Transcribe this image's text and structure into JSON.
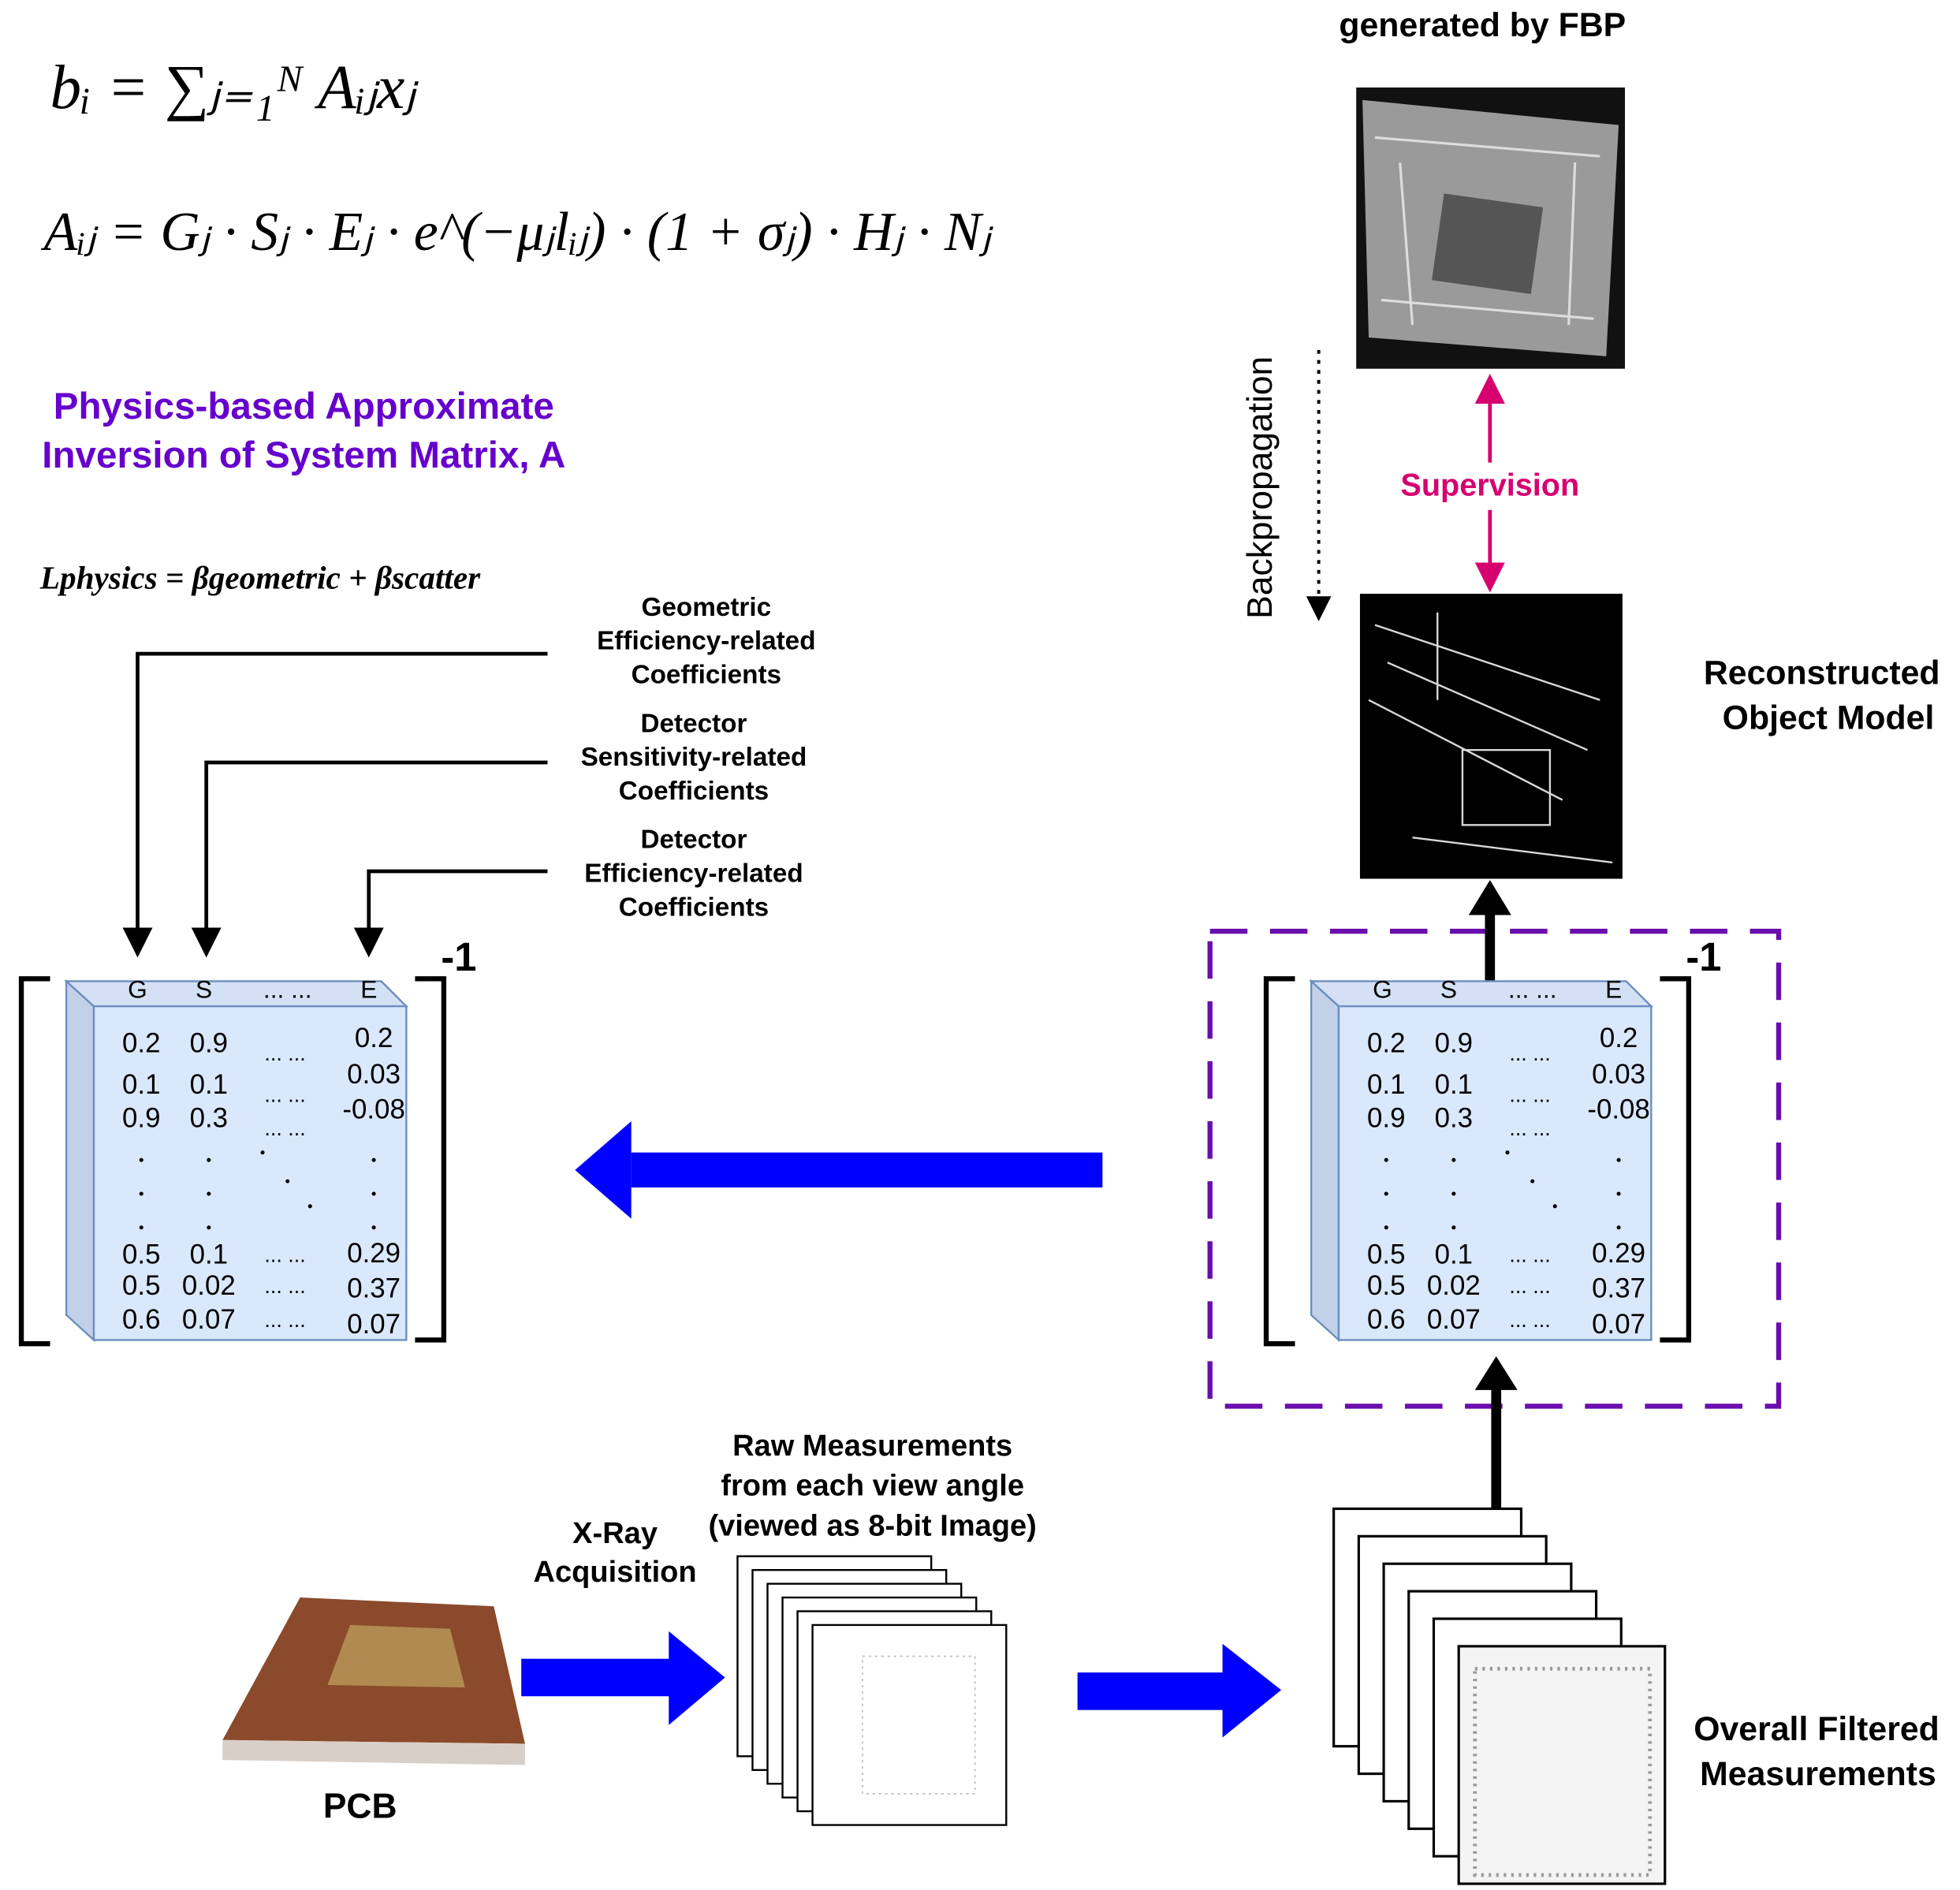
{
  "equations": {
    "forward": "bᵢ = ∑ⱼ₌₁ᴺ Aᵢⱼxⱼ",
    "system_matrix": "Aᵢⱼ = Gⱼ · Sⱼ · Eⱼ · e^(−μⱼlᵢⱼ) · (1 + σⱼ) · Hⱼ · Nⱼ",
    "loss": "Lphysics = βgeometric + βscatter"
  },
  "physics_title": [
    "Physics-based Approximate",
    "Inversion of System Matrix, A"
  ],
  "coefficients": [
    [
      "Geometric",
      "Efficiency-related",
      "Coefficients"
    ],
    [
      "Detector",
      "Sensitivity-related",
      "Coefficients"
    ],
    [
      "Detector",
      "Efficiency-related",
      "Coefficients"
    ]
  ],
  "matrix": {
    "exponent": "-1",
    "headers": [
      "G",
      "S",
      "... ...",
      "E"
    ],
    "top_rows": [
      [
        "0.2",
        "0.9",
        "... ...",
        "0.2"
      ],
      [
        "0.1",
        "0.1",
        "... ...",
        "0.03"
      ],
      [
        "0.9",
        "0.3",
        "... ...",
        "-0.08"
      ]
    ],
    "bottom_rows": [
      [
        "0.5",
        "0.1",
        "... ...",
        "0.29"
      ],
      [
        "0.5",
        "0.02",
        "... ...",
        "0.37"
      ],
      [
        "0.6",
        "0.07",
        "... ...",
        "0.07"
      ]
    ]
  },
  "fbp_title": "generated by FBP",
  "supervision": "Supervision",
  "backpropagation": "Backpropagation",
  "reconstructed": [
    "Reconstructed",
    "Object Model"
  ],
  "pcb": "PCB",
  "acquisition": [
    "X-Ray",
    "Acquisition"
  ],
  "raw_measurements": [
    "Raw Measurements",
    "from each view angle",
    "(viewed as 8-bit Image)"
  ],
  "filtered": [
    "Overall Filtered",
    "Measurements"
  ]
}
